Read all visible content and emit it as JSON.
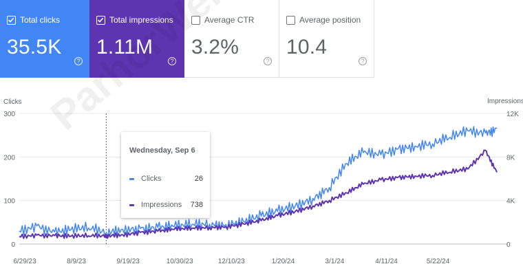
{
  "cards": [
    {
      "label": "Total clicks",
      "value": "35.5K",
      "checked": true
    },
    {
      "label": "Total impressions",
      "value": "1.11M",
      "checked": true
    },
    {
      "label": "Average CTR",
      "value": "3.2%",
      "checked": false
    },
    {
      "label": "Average position",
      "value": "10.4",
      "checked": false
    }
  ],
  "help_glyph": "?",
  "watermark": "ParhorWeb.ir",
  "colors": {
    "clicks": "#4285f4",
    "impressions": "#5e35b1"
  },
  "chart_data": {
    "type": "line",
    "left_axis_title": "Clicks",
    "right_axis_title": "Impressions",
    "left_ticks": [
      "300",
      "200",
      "100",
      "0"
    ],
    "right_ticks": [
      "12K",
      "8K",
      "4K",
      "0"
    ],
    "ylim_left": [
      0,
      300
    ],
    "ylim_right": [
      0,
      12000
    ],
    "x_ticks": [
      "6/29/23",
      "8/9/23",
      "9/19/23",
      "10/30/23",
      "12/10/23",
      "1/20/24",
      "3/1/24",
      "4/11/24",
      "5/22/24"
    ],
    "x_range": [
      "2023-06-29",
      "2024-07-12"
    ],
    "grid": true,
    "series": [
      {
        "name": "Clicks",
        "axis": "left",
        "x": [
          "2023-06-29",
          "2023-07-13",
          "2023-07-27",
          "2023-08-09",
          "2023-08-23",
          "2023-09-06",
          "2023-09-19",
          "2023-10-03",
          "2023-10-17",
          "2023-10-30",
          "2023-11-13",
          "2023-11-27",
          "2023-12-10",
          "2023-12-24",
          "2024-01-07",
          "2024-01-20",
          "2024-02-03",
          "2024-02-17",
          "2024-03-01",
          "2024-03-15",
          "2024-03-28",
          "2024-04-11",
          "2024-04-25",
          "2024-05-08",
          "2024-05-22",
          "2024-06-05",
          "2024-06-19",
          "2024-07-03",
          "2024-07-12"
        ],
        "values": [
          30,
          42,
          28,
          33,
          37,
          26,
          34,
          36,
          38,
          40,
          45,
          46,
          45,
          52,
          64,
          75,
          88,
          105,
          130,
          185,
          210,
          205,
          220,
          225,
          230,
          245,
          260,
          255,
          265
        ]
      },
      {
        "name": "Impressions",
        "axis": "right",
        "x": [
          "2023-06-29",
          "2023-07-13",
          "2023-07-27",
          "2023-08-09",
          "2023-08-23",
          "2023-09-06",
          "2023-09-19",
          "2023-10-03",
          "2023-10-17",
          "2023-10-30",
          "2023-11-13",
          "2023-11-27",
          "2023-12-10",
          "2023-12-24",
          "2024-01-07",
          "2024-01-20",
          "2024-02-03",
          "2024-02-17",
          "2024-03-01",
          "2024-03-15",
          "2024-03-28",
          "2024-04-11",
          "2024-04-25",
          "2024-05-08",
          "2024-05-22",
          "2024-06-05",
          "2024-06-19",
          "2024-07-03",
          "2024-07-12"
        ],
        "values": [
          700,
          820,
          780,
          720,
          760,
          738,
          860,
          1080,
          1180,
          1340,
          1450,
          1520,
          1600,
          1850,
          2150,
          2600,
          3000,
          3500,
          4000,
          4700,
          5500,
          5900,
          6150,
          6250,
          6300,
          6600,
          6900,
          8600,
          6600
        ]
      }
    ],
    "tooltip": {
      "date": "Wednesday, Sep 6",
      "rows": [
        {
          "label": "Clicks",
          "value": "26"
        },
        {
          "label": "Impressions",
          "value": "738"
        }
      ]
    }
  }
}
